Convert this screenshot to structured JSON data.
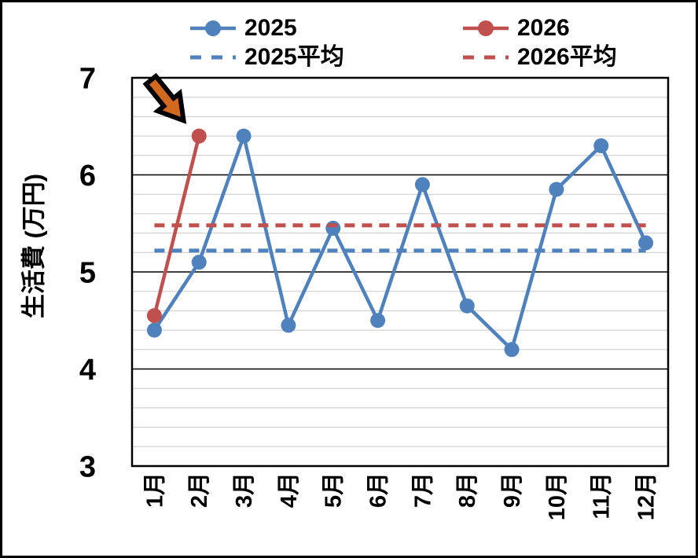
{
  "page": {
    "background": "#FFFFFF",
    "frame_border_color": "#000000"
  },
  "chart_data": {
    "type": "line",
    "title": "",
    "ylabel": "生活費 (万円)",
    "xlabel": "",
    "categories": [
      "1月",
      "2月",
      "3月",
      "4月",
      "5月",
      "6月",
      "7月",
      "8月",
      "9月",
      "10月",
      "11月",
      "12月"
    ],
    "series": [
      {
        "name": "2025",
        "color": "#4F81BD",
        "line": "solid",
        "marker": "circle",
        "values": [
          4.4,
          5.1,
          6.4,
          4.45,
          5.45,
          4.5,
          5.9,
          4.65,
          4.2,
          5.85,
          6.3,
          5.3
        ]
      },
      {
        "name": "2026",
        "color": "#C0504D",
        "line": "solid",
        "marker": "circle",
        "values": [
          4.55,
          6.4,
          null,
          null,
          null,
          null,
          null,
          null,
          null,
          null,
          null,
          null
        ]
      },
      {
        "name": "2025平均",
        "color": "#4F81BD",
        "line": "dashed",
        "marker": "none",
        "avg_value": 5.22
      },
      {
        "name": "2026平均",
        "color": "#C0504D",
        "line": "dashed",
        "marker": "none",
        "avg_value": 5.48
      }
    ],
    "ylim": [
      3,
      7
    ],
    "yticks": [
      3,
      4,
      5,
      6,
      7
    ],
    "minor_gridline_step": 0.2,
    "grid": {
      "major": true,
      "minor": true,
      "major_color": "#000000",
      "minor_color": "#C9C9C9",
      "border_color": "#000000"
    },
    "legend_position": "top",
    "annotation": {
      "shape": "block-arrow",
      "direction": "down-right",
      "fill": "#D2691E",
      "outline": "#000000",
      "points_at": "2026 2月 data point"
    }
  }
}
